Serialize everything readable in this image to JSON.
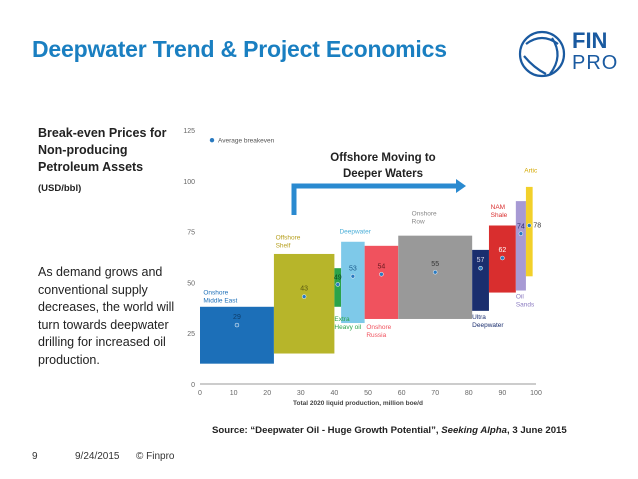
{
  "header": {
    "title": "Deepwater Trend & Project Economics"
  },
  "logo": {
    "line1": "FIN",
    "line2": "PRO"
  },
  "left_panel": {
    "title": "Break-even Prices for Non-producing Petroleum Assets",
    "unit": "(USD/bbl)",
    "paragraph": "As demand grows and conventional supply decreases, the world will turn towards deepwater drilling for increased oil production."
  },
  "callout": {
    "line1": "Offshore Moving to",
    "line2": "Deeper Waters"
  },
  "source": {
    "prefix": "Source: “Deepwater Oil - Huge Growth Potential”, ",
    "publication": "Seeking Alpha",
    "suffix": ", 3 June 2015"
  },
  "footer": {
    "page": "9",
    "date": "9/24/2015",
    "copyright": "© Finpro"
  },
  "chart_data": {
    "type": "bar",
    "xlabel": "Total 2020 liquid production, million boe/d",
    "ylim": [
      0,
      125
    ],
    "xlim": [
      0,
      100
    ],
    "yticks": [
      0,
      25,
      50,
      75,
      100,
      125
    ],
    "xticks": [
      0,
      10,
      20,
      30,
      40,
      50,
      60,
      70,
      80,
      90,
      100
    ],
    "legend": "Average breakeven",
    "series": [
      {
        "label": "Onshore Middle East",
        "x0": 0,
        "x1": 22,
        "low": 10,
        "high": 38,
        "avg": 29,
        "avg_label": "29",
        "color": "#1c6fb8"
      },
      {
        "label": "Offshore Shelf",
        "x0": 22,
        "x1": 40,
        "low": 15,
        "high": 64,
        "avg": 43,
        "avg_label": "43",
        "color": "#b7b52a"
      },
      {
        "label": "Extra Heavy oil",
        "x0": 40,
        "x1": 42,
        "low": 38,
        "high": 57,
        "avg": 49,
        "avg_label": "49",
        "color": "#2aa34a"
      },
      {
        "label": "Deepwater",
        "x0": 42,
        "x1": 49,
        "low": 30,
        "high": 70,
        "avg": 53,
        "avg_label": "53",
        "color": "#7ec9e9"
      },
      {
        "label": "Onshore Russia",
        "x0": 49,
        "x1": 59,
        "low": 32,
        "high": 68,
        "avg": 54,
        "avg_label": "54",
        "color": "#f0525e"
      },
      {
        "label": "Onshore Row",
        "x0": 59,
        "x1": 81,
        "low": 32,
        "high": 73,
        "avg": 55,
        "avg_label": "55",
        "color": "#999999"
      },
      {
        "label": "Ultra Deepwater",
        "x0": 81,
        "x1": 86,
        "low": 36,
        "high": 66,
        "avg": 57,
        "avg_label": "57",
        "color": "#1a2e6e"
      },
      {
        "label": "NAM Shale",
        "x0": 86,
        "x1": 94,
        "low": 45,
        "high": 78,
        "avg": 62,
        "avg_label": "62",
        "color": "#d92e2e"
      },
      {
        "label": "Oil Sands",
        "x0": 94,
        "x1": 97,
        "low": 46,
        "high": 90,
        "avg": 74,
        "avg_label": "74",
        "color": "#a79ad4"
      },
      {
        "label": "Artic",
        "x0": 97,
        "x1": 99,
        "low": 53,
        "high": 97,
        "avg": 78,
        "avg_label": "78",
        "color": "#f2d02a"
      }
    ]
  }
}
